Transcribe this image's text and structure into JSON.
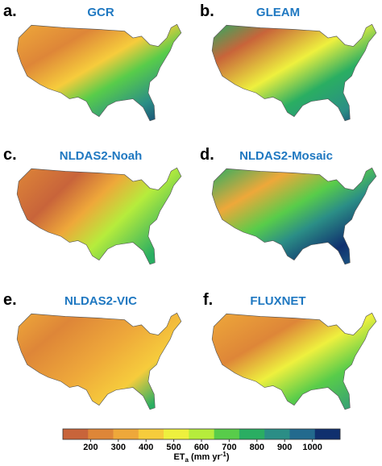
{
  "panels": [
    {
      "label": "a.",
      "title": "GCR"
    },
    {
      "label": "b.",
      "title": "GLEAM"
    },
    {
      "label": "c.",
      "title": "NLDAS2-Noah"
    },
    {
      "label": "d.",
      "title": "NLDAS2-Mosaic"
    },
    {
      "label": "e.",
      "title": "NLDAS2-VIC"
    },
    {
      "label": "f.",
      "title": "FLUXNET"
    }
  ],
  "colorbar": {
    "lim": [
      100,
      1100
    ],
    "ticks": [
      200,
      300,
      400,
      500,
      600,
      700,
      800,
      900,
      1000
    ],
    "colors": [
      "#c8643a",
      "#de8638",
      "#eea83a",
      "#f6cc3c",
      "#eef03e",
      "#b6ec3c",
      "#58cc4a",
      "#2aae62",
      "#2b8e86",
      "#236a8e",
      "#10306e"
    ],
    "label": {
      "symbol": "ET",
      "subscript": "a",
      "units": " (mm yr",
      "exponent": "-1",
      "close": ")"
    }
  }
}
